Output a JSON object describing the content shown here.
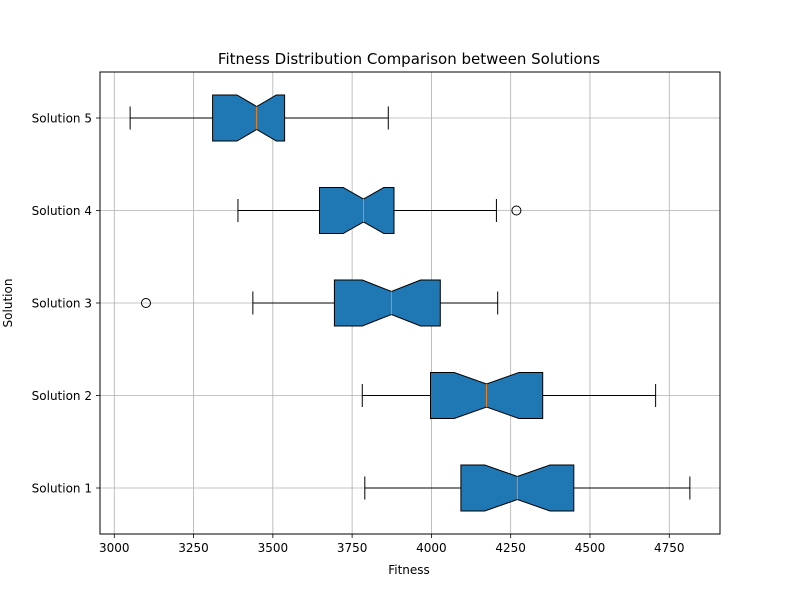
{
  "chart_data": {
    "type": "box",
    "orientation": "horizontal",
    "notched": true,
    "title": "Fitness Distribution Comparison between Solutions",
    "xlabel": "Fitness",
    "ylabel": "Solution",
    "xlim": [
      2955,
      4910
    ],
    "xticks": [
      3000,
      3250,
      3500,
      3750,
      4000,
      4250,
      4500,
      4750
    ],
    "grid": true,
    "box_color": "#1f77b4",
    "median_color": "#ff7f0e",
    "categories": [
      "Solution 1",
      "Solution 2",
      "Solution 3",
      "Solution 4",
      "Solution 5"
    ],
    "boxes": [
      {
        "label": "Solution 1",
        "whislo": 3790,
        "q1": 4093,
        "notch_lo": 4168,
        "med": 4271,
        "notch_hi": 4374,
        "q3": 4449,
        "whishi": 4815,
        "fliers": []
      },
      {
        "label": "Solution 2",
        "whislo": 3782,
        "q1": 3997,
        "notch_lo": 4072,
        "med": 4174,
        "notch_hi": 4276,
        "q3": 4351,
        "whishi": 4707,
        "fliers": []
      },
      {
        "label": "Solution 3",
        "whislo": 3437,
        "q1": 3694,
        "notch_lo": 3782,
        "med": 3874,
        "notch_hi": 3966,
        "q3": 4028,
        "whishi": 4209,
        "fliers": [
          3100
        ]
      },
      {
        "label": "Solution 4",
        "whislo": 3390,
        "q1": 3647,
        "notch_lo": 3722,
        "med": 3786,
        "notch_hi": 3850,
        "q3": 3882,
        "whishi": 4205,
        "fliers": [
          4268
        ]
      },
      {
        "label": "Solution 5",
        "whislo": 3050,
        "q1": 3310,
        "notch_lo": 3387,
        "med": 3449,
        "notch_hi": 3511,
        "q3": 3537,
        "whishi": 3864,
        "fliers": []
      }
    ]
  }
}
